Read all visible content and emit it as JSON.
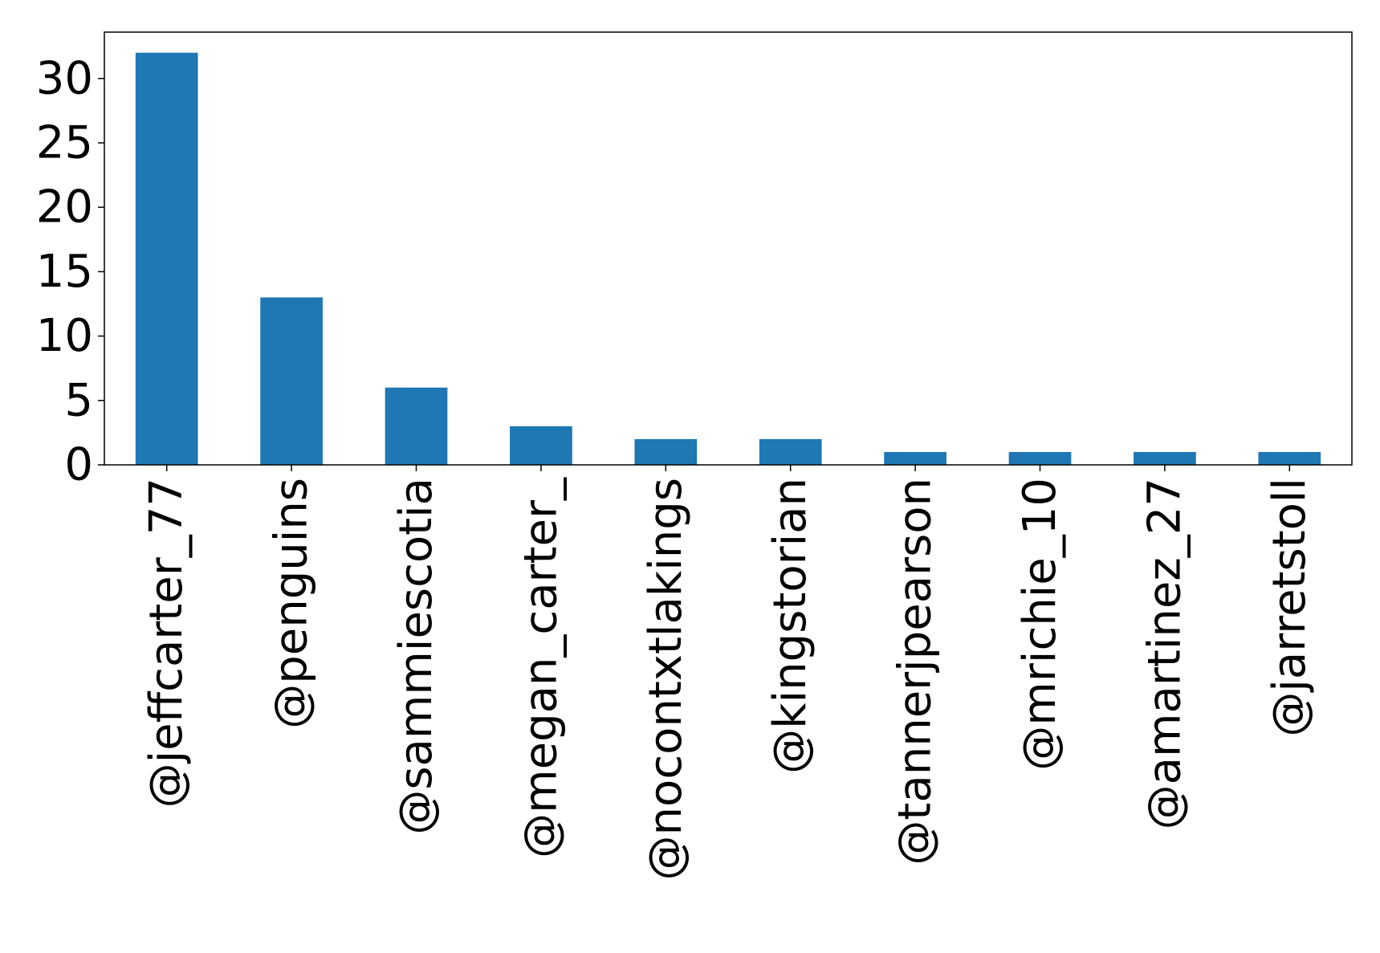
{
  "chart_data": {
    "type": "bar",
    "categories": [
      "@jeffcarter_77",
      "@penguins",
      "@sammiescotia",
      "@megan_carter_",
      "@nocontxtlakings",
      "@kingstorian",
      "@tannerjpearson",
      "@mrichie_10",
      "@amartinez_27",
      "@jarretstoll"
    ],
    "values": [
      32,
      13,
      6,
      3,
      2,
      2,
      1,
      1,
      1,
      1
    ],
    "y_ticks": [
      0,
      5,
      10,
      15,
      20,
      25,
      30
    ],
    "ylim": [
      0,
      33.6
    ],
    "title": "",
    "xlabel": "",
    "ylabel": "",
    "grid": false,
    "legend": "none",
    "bar_color": "#1f77b4"
  }
}
